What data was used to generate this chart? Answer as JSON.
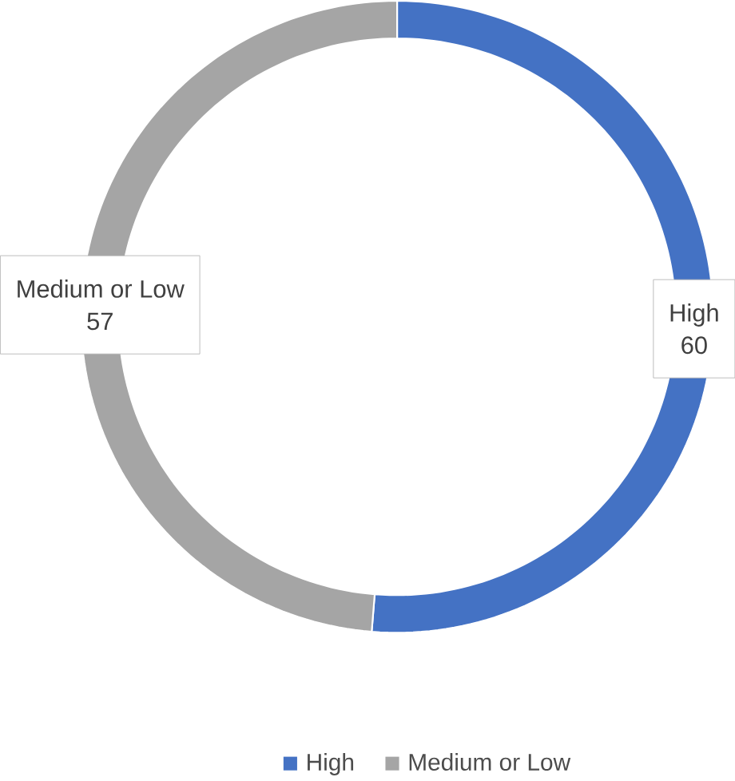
{
  "chart_data": {
    "type": "donut",
    "categories": [
      "High",
      "Medium or Low"
    ],
    "values": [
      60,
      57
    ],
    "colors": [
      "#4472c4",
      "#a5a5a5"
    ],
    "data_labels": true,
    "legend": "bottom"
  }
}
